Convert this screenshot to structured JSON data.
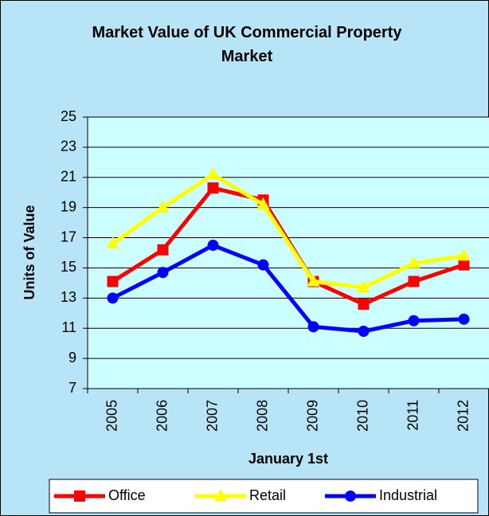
{
  "chart_data": {
    "type": "line",
    "title": "Market Value of UK Commercial Property Market",
    "x_label": "January 1st",
    "y_label": "Units of Value",
    "categories": [
      "2005",
      "2006",
      "2007",
      "2008",
      "2009",
      "2010",
      "2011",
      "2012"
    ],
    "series": [
      {
        "name": "Office",
        "color": "#ff0000",
        "marker": "square",
        "values": [
          14.1,
          16.2,
          20.3,
          19.5,
          14.1,
          12.6,
          14.1,
          15.2
        ]
      },
      {
        "name": "Retail",
        "color": "#ffff00",
        "marker": "triangle",
        "values": [
          16.6,
          19.0,
          21.2,
          19.2,
          14.1,
          13.7,
          15.3,
          15.8
        ]
      },
      {
        "name": "Industrial",
        "color": "#0000ff",
        "marker": "circle",
        "values": [
          13.0,
          14.7,
          16.5,
          15.2,
          11.1,
          10.8,
          11.5,
          11.6
        ]
      }
    ],
    "ylim": [
      7,
      25
    ],
    "yticks": [
      7,
      9,
      11,
      13,
      15,
      17,
      19,
      21,
      23,
      25
    ],
    "grid": true,
    "legend": "bottom"
  }
}
